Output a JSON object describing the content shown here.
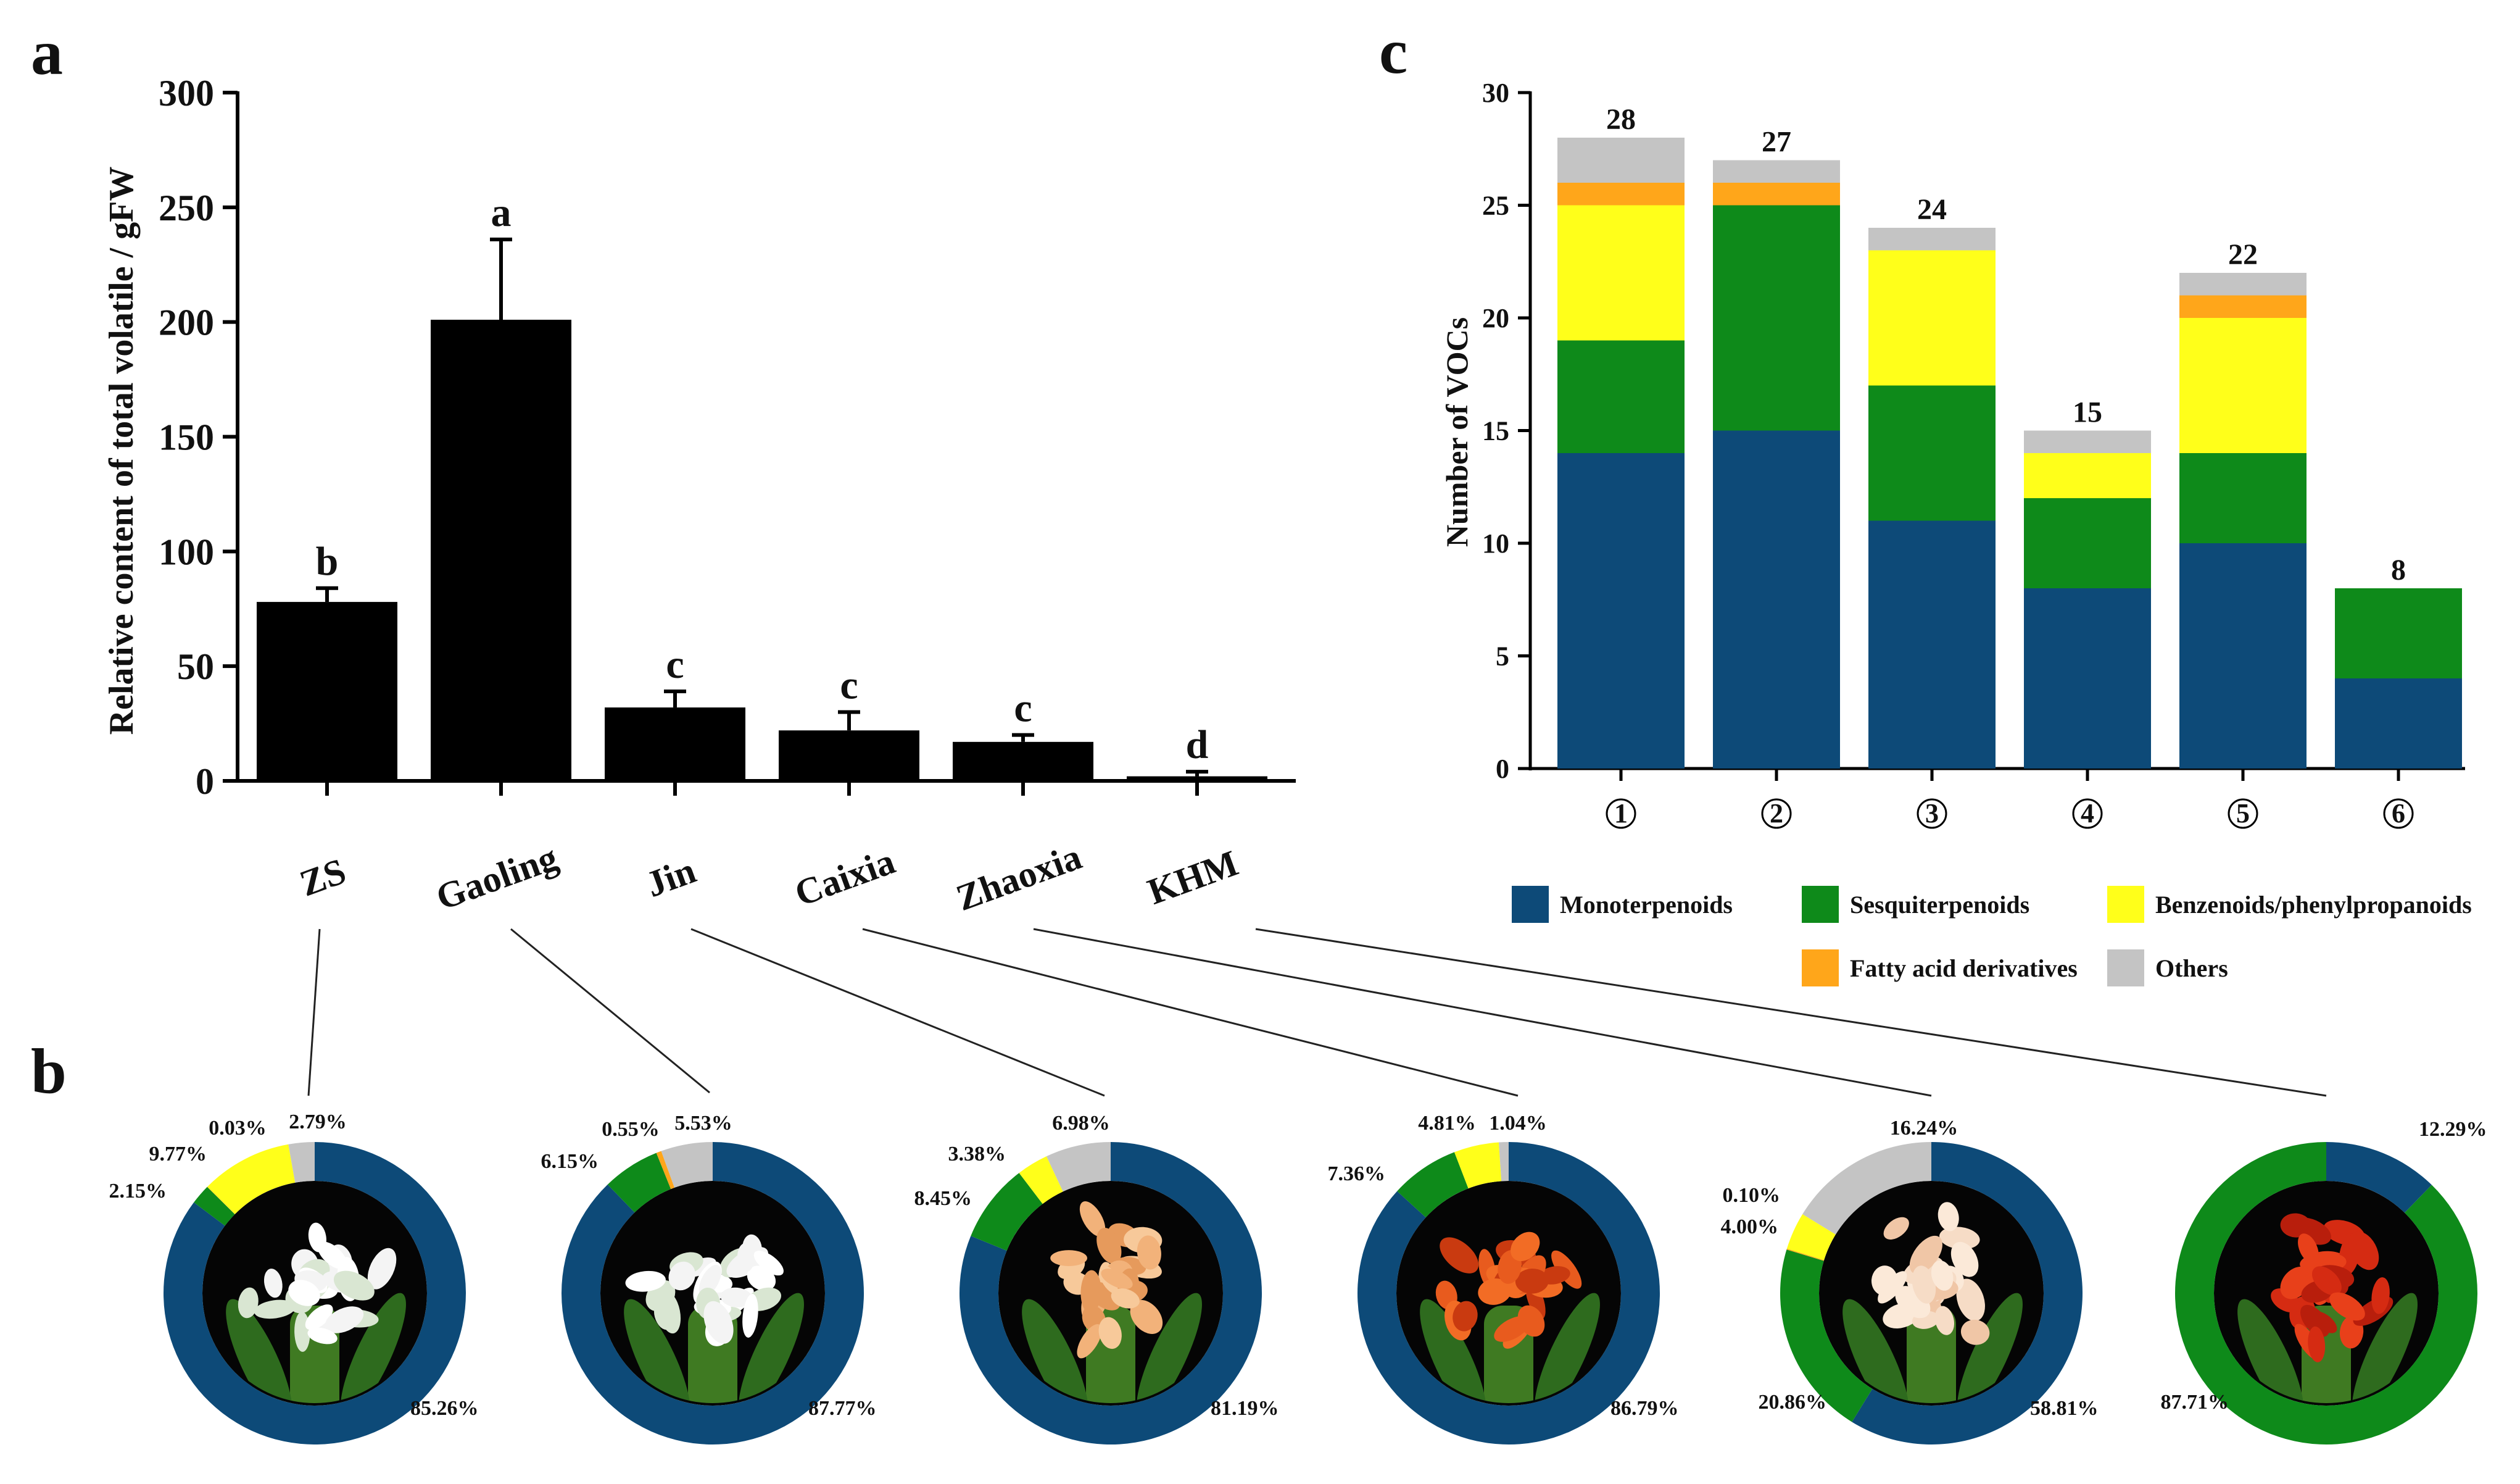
{
  "panels": {
    "a": "a",
    "b": "b",
    "c": "c"
  },
  "colors": {
    "Monoterpenoids": "#0d4a78",
    "Sesquiterpenoids": "#0e8a1a",
    "Benzenoids/phenylpropanoids": "#ffff1a",
    "Fatty acid derivatives": "#ffa61a",
    "Others": "#c4c4c4",
    "bar": "#000000"
  },
  "chart_data": [
    {
      "id": "a",
      "type": "bar",
      "ylabel": "Relative content of total volatile / gFW",
      "ylim": [
        0,
        300
      ],
      "yticks": [
        0,
        50,
        100,
        150,
        200,
        250,
        300
      ],
      "categories": [
        "ZS",
        "Gaoling",
        "Jin",
        "Caixia",
        "Zhaoxia",
        "KHM"
      ],
      "values": [
        78,
        201,
        32,
        22,
        17,
        2
      ],
      "errors": [
        6,
        35,
        7,
        8,
        3,
        2
      ],
      "significance": [
        "b",
        "a",
        "c",
        "c",
        "c",
        "d"
      ]
    },
    {
      "id": "c",
      "type": "bar",
      "stacked": true,
      "ylabel": "Number of VOCs",
      "ylim": [
        0,
        30
      ],
      "yticks": [
        0,
        5,
        10,
        15,
        20,
        25,
        30
      ],
      "categories": [
        "①",
        "②",
        "③",
        "④",
        "⑤",
        "⑥"
      ],
      "totals": [
        28,
        27,
        24,
        15,
        22,
        8
      ],
      "series": [
        {
          "name": "Monoterpenoids",
          "values": [
            14,
            15,
            11,
            8,
            10,
            4
          ]
        },
        {
          "name": "Sesquiterpenoids",
          "values": [
            5,
            10,
            6,
            4,
            4,
            4
          ]
        },
        {
          "name": "Benzenoids/phenylpropanoids",
          "values": [
            6,
            0,
            6,
            2,
            6,
            0
          ]
        },
        {
          "name": "Fatty acid derivatives",
          "values": [
            1,
            1,
            0,
            0,
            1,
            0
          ]
        },
        {
          "name": "Others",
          "values": [
            2,
            1,
            1,
            1,
            1,
            0
          ]
        }
      ],
      "legend": [
        "Monoterpenoids",
        "Sesquiterpenoids",
        "Benzenoids/phenylpropanoids",
        "Fatty acid derivatives",
        "Others"
      ]
    },
    {
      "id": "b",
      "type": "pie",
      "style": "donut",
      "order": [
        "Monoterpenoids",
        "Sesquiterpenoids",
        "Fatty acid derivatives",
        "Benzenoids/phenylpropanoids",
        "Others"
      ],
      "donuts": [
        {
          "name": "ZS",
          "photo": "white-flower",
          "values": {
            "Monoterpenoids": 85.26,
            "Sesquiterpenoids": 2.15,
            "Fatty acid derivatives": 0.03,
            "Benzenoids/phenylpropanoids": 9.77,
            "Others": 2.79
          },
          "labels": [
            "2.15%",
            "9.77%",
            "0.03%",
            "2.79%",
            "85.26%"
          ]
        },
        {
          "name": "Gaoling",
          "photo": "white-flower",
          "values": {
            "Monoterpenoids": 87.77,
            "Sesquiterpenoids": 6.15,
            "Fatty acid derivatives": 0.55,
            "Benzenoids/phenylpropanoids": 0,
            "Others": 5.53
          },
          "labels": [
            "6.15%",
            "0.55%",
            "5.53%",
            "87.77%"
          ]
        },
        {
          "name": "Jin",
          "photo": "peach-flower",
          "values": {
            "Monoterpenoids": 81.19,
            "Sesquiterpenoids": 8.45,
            "Fatty acid derivatives": 0,
            "Benzenoids/phenylpropanoids": 3.38,
            "Others": 6.98
          },
          "labels": [
            "8.45%",
            "3.38%",
            "6.98%",
            "81.19%"
          ]
        },
        {
          "name": "Caixia",
          "photo": "orange-flower",
          "values": {
            "Monoterpenoids": 86.79,
            "Sesquiterpenoids": 7.36,
            "Fatty acid derivatives": 0,
            "Benzenoids/phenylpropanoids": 4.81,
            "Others": 1.04
          },
          "labels": [
            "7.36%",
            "4.81%",
            "1.04%",
            "86.79%"
          ]
        },
        {
          "name": "Zhaoxia",
          "photo": "cream-flower",
          "values": {
            "Monoterpenoids": 58.81,
            "Sesquiterpenoids": 20.86,
            "Fatty acid derivatives": 0.1,
            "Benzenoids/phenylpropanoids": 4.0,
            "Others": 16.24
          },
          "labels": [
            "20.86%",
            "4.00%",
            "0.10%",
            "16.24%",
            "58.81%"
          ]
        },
        {
          "name": "KHM",
          "photo": "red-flower",
          "values": {
            "Monoterpenoids": 12.29,
            "Sesquiterpenoids": 87.71,
            "Fatty acid derivatives": 0,
            "Benzenoids/phenylpropanoids": 0,
            "Others": 0
          },
          "labels": [
            "87.71%",
            "12.29%"
          ]
        }
      ]
    }
  ]
}
